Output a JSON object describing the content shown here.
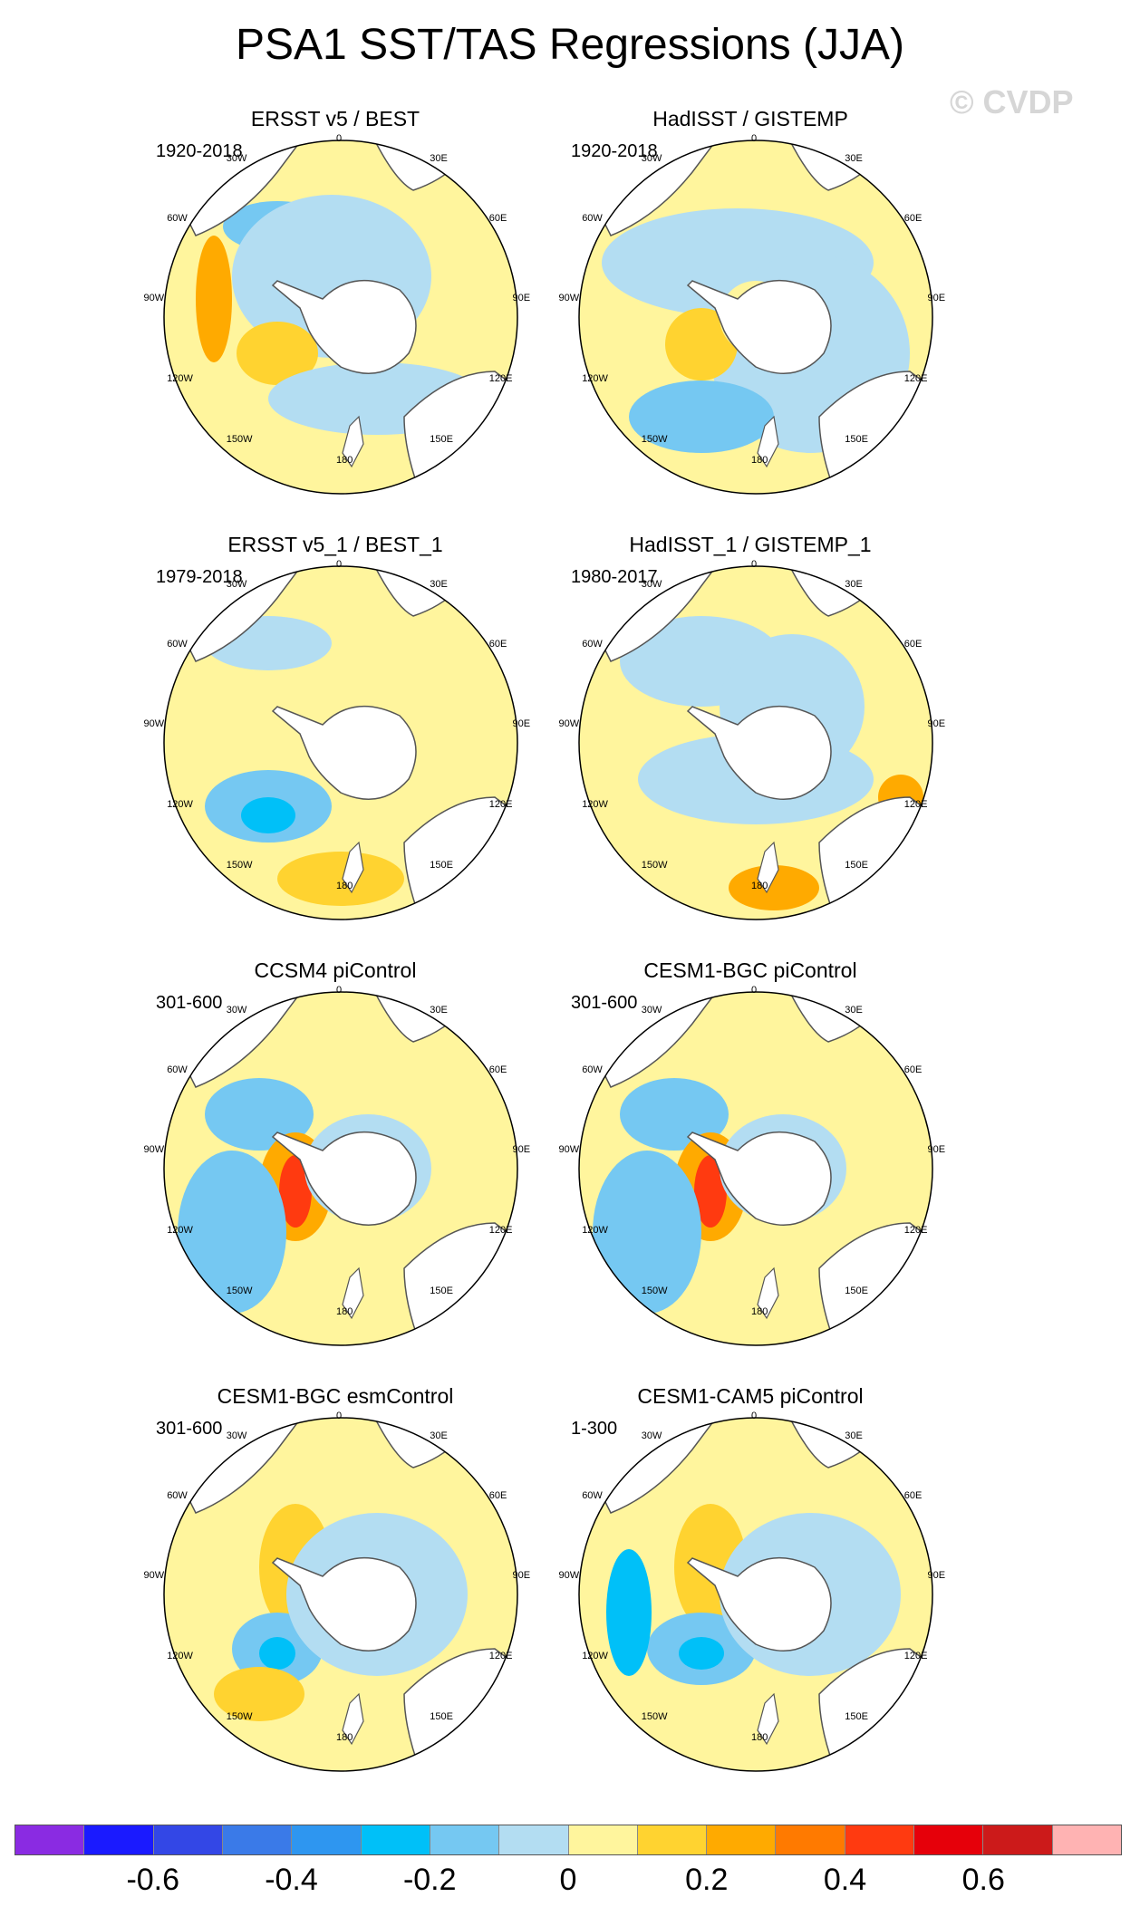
{
  "title": "PSA1 SST/TAS Regressions (JJA)",
  "watermark": "© CVDP",
  "panels": [
    {
      "title": "ERSST v5 / BEST",
      "period": "1920-2018"
    },
    {
      "title": "HadISST / GISTEMP",
      "period": "1920-2018"
    },
    {
      "title": "ERSST v5_1 / BEST_1",
      "period": "1979-2018"
    },
    {
      "title": "HadISST_1 / GISTEMP_1",
      "period": "1980-2017"
    },
    {
      "title": "CCSM4 piControl",
      "period": "301-600"
    },
    {
      "title": "CESM1-BGC piControl",
      "period": "301-600"
    },
    {
      "title": "CESM1-BGC esmControl",
      "period": "301-600"
    },
    {
      "title": "CESM1-CAM5 piControl",
      "period": "1-300"
    }
  ],
  "lon_labels": {
    "top": "0",
    "top_right": "30E",
    "right_upper": "60E",
    "right": "90E",
    "right_lower": "120E",
    "bottom_right": "150E",
    "bottom": "180",
    "bottom_left": "150W",
    "left_lower": "120W",
    "left": "90W",
    "left_upper": "60W",
    "top_left": "30W"
  },
  "colorbar": {
    "colors": [
      "#8a2be2",
      "#1a1aff",
      "#3347e6",
      "#3a7ae8",
      "#2e96f0",
      "#00c0f8",
      "#75c8f2",
      "#b3ddf2",
      "#fff59d",
      "#ffd330",
      "#ffaa00",
      "#ff7a00",
      "#ff3a10",
      "#e6000a",
      "#cc1a1a",
      "#ffb3b3"
    ],
    "labels": [
      "-0.6",
      "-0.4",
      "-0.2",
      "0",
      "0.2",
      "0.4",
      "0.6"
    ]
  }
}
